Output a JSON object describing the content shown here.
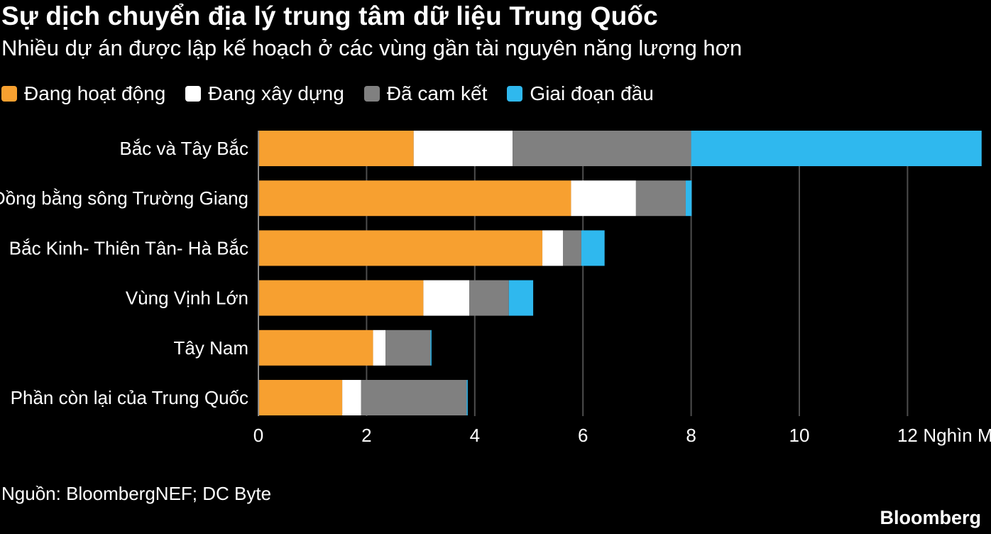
{
  "chart_data": {
    "type": "bar",
    "orientation": "horizontal",
    "stacked": true,
    "title": "Sự dịch chuyển địa lý trung tâm dữ liệu Trung Quốc",
    "subtitle": "Nhiều dự án được lập kế hoạch ở các vùng gần tài nguyên năng lượng hơn",
    "categories": [
      "Bắc và Tây Bắc",
      "Đồng bằng sông Trường Giang",
      "Bắc Kinh- Thiên Tân- Hà Bắc",
      "Vùng Vịnh Lớn",
      "Tây Nam",
      "Phần còn lại của Trung Quốc"
    ],
    "series": [
      {
        "name": "Đang hoạt động",
        "color": "#f7a030",
        "values": [
          2.87,
          5.78,
          5.25,
          3.05,
          2.12,
          1.55
        ]
      },
      {
        "name": "Đang xây dựng",
        "color": "#ffffff",
        "values": [
          1.83,
          1.2,
          0.38,
          0.85,
          0.23,
          0.35
        ]
      },
      {
        "name": "Đã cam kết",
        "color": "#808080",
        "values": [
          3.3,
          0.92,
          0.34,
          0.73,
          0.83,
          1.95
        ]
      },
      {
        "name": "Giai đoạn đầu",
        "color": "#2fb8ee",
        "values": [
          5.37,
          0.11,
          0.43,
          0.45,
          0.02,
          0.02
        ]
      }
    ],
    "x_ticks": [
      0,
      2,
      4,
      6,
      8,
      10,
      12
    ],
    "x_tick_labels": [
      "0",
      "2",
      "4",
      "6",
      "8",
      "10",
      "12"
    ],
    "x_unit_label": "Nghìn MW",
    "xlim": [
      0,
      13.4
    ],
    "grid": "vertical",
    "legend_position": "top-left",
    "source": "Nguồn: BloombergNEF; DC Byte",
    "brand": "Bloomberg"
  }
}
